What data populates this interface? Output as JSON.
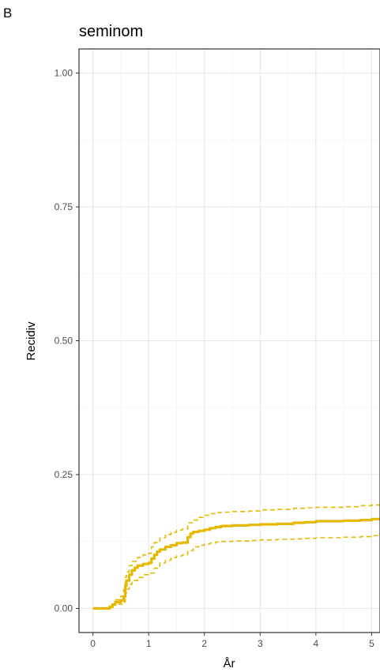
{
  "panel_tag": "B",
  "chart_data": {
    "type": "line",
    "title": "seminom",
    "xlabel": "År",
    "ylabel": "Recidiv",
    "xlim": [
      -0.25,
      5.15
    ],
    "ylim": [
      -0.045,
      1.045
    ],
    "x_ticks": [
      0,
      1,
      2,
      3,
      4,
      5
    ],
    "x_tick_labels": [
      "0",
      "1",
      "2",
      "3",
      "4",
      "5"
    ],
    "y_ticks": [
      0.0,
      0.25,
      0.5,
      0.75,
      1.0
    ],
    "y_tick_labels": [
      "0.00",
      "0.25",
      "0.50",
      "0.75",
      "1.00"
    ],
    "grid": true,
    "color": "#e6b800",
    "series": [
      {
        "role": "estimate",
        "style": "solid",
        "x": [
          0,
          0.25,
          0.3,
          0.35,
          0.4,
          0.5,
          0.55,
          0.58,
          0.6,
          0.65,
          0.7,
          0.75,
          0.8,
          0.9,
          1.0,
          1.05,
          1.1,
          1.15,
          1.2,
          1.3,
          1.4,
          1.5,
          1.6,
          1.7,
          1.75,
          1.8,
          1.9,
          2.0,
          2.1,
          2.2,
          2.3,
          2.5,
          2.8,
          3.0,
          3.3,
          3.6,
          3.8,
          4.0,
          4.5,
          4.8,
          5.0,
          5.15
        ],
        "y": [
          0.0,
          0.0,
          0.003,
          0.007,
          0.012,
          0.015,
          0.022,
          0.042,
          0.052,
          0.063,
          0.071,
          0.076,
          0.08,
          0.083,
          0.085,
          0.093,
          0.1,
          0.106,
          0.11,
          0.115,
          0.118,
          0.122,
          0.123,
          0.133,
          0.14,
          0.143,
          0.145,
          0.147,
          0.15,
          0.152,
          0.154,
          0.155,
          0.156,
          0.157,
          0.158,
          0.16,
          0.161,
          0.163,
          0.164,
          0.165,
          0.167,
          0.169
        ]
      },
      {
        "role": "upper",
        "style": "dashed",
        "x": [
          0.4,
          0.5,
          0.55,
          0.58,
          0.6,
          0.65,
          0.7,
          0.8,
          0.9,
          1.0,
          1.05,
          1.1,
          1.2,
          1.3,
          1.4,
          1.5,
          1.6,
          1.7,
          1.8,
          1.9,
          2.0,
          2.1,
          2.2,
          2.3,
          2.5,
          2.8,
          3.0,
          3.3,
          3.6,
          3.8,
          4.0,
          4.5,
          4.8,
          5.0,
          5.15
        ],
        "y": [
          0.016,
          0.023,
          0.035,
          0.058,
          0.068,
          0.08,
          0.088,
          0.095,
          0.1,
          0.103,
          0.115,
          0.123,
          0.132,
          0.138,
          0.142,
          0.146,
          0.148,
          0.16,
          0.165,
          0.17,
          0.174,
          0.177,
          0.179,
          0.18,
          0.181,
          0.182,
          0.184,
          0.185,
          0.187,
          0.188,
          0.189,
          0.19,
          0.192,
          0.193,
          0.195
        ]
      },
      {
        "role": "lower",
        "style": "dashed",
        "x": [
          0.45,
          0.55,
          0.58,
          0.6,
          0.65,
          0.7,
          0.8,
          0.9,
          1.0,
          1.1,
          1.2,
          1.3,
          1.4,
          1.5,
          1.6,
          1.7,
          1.8,
          1.9,
          2.0,
          2.1,
          2.2,
          2.3,
          2.5,
          2.8,
          3.0,
          3.3,
          3.6,
          3.8,
          4.0,
          4.5,
          4.8,
          5.0,
          5.15
        ],
        "y": [
          0.008,
          0.012,
          0.028,
          0.036,
          0.045,
          0.052,
          0.058,
          0.063,
          0.066,
          0.075,
          0.085,
          0.09,
          0.095,
          0.098,
          0.1,
          0.108,
          0.115,
          0.118,
          0.12,
          0.122,
          0.124,
          0.125,
          0.126,
          0.127,
          0.128,
          0.129,
          0.13,
          0.131,
          0.132,
          0.133,
          0.134,
          0.136,
          0.141
        ]
      }
    ]
  }
}
